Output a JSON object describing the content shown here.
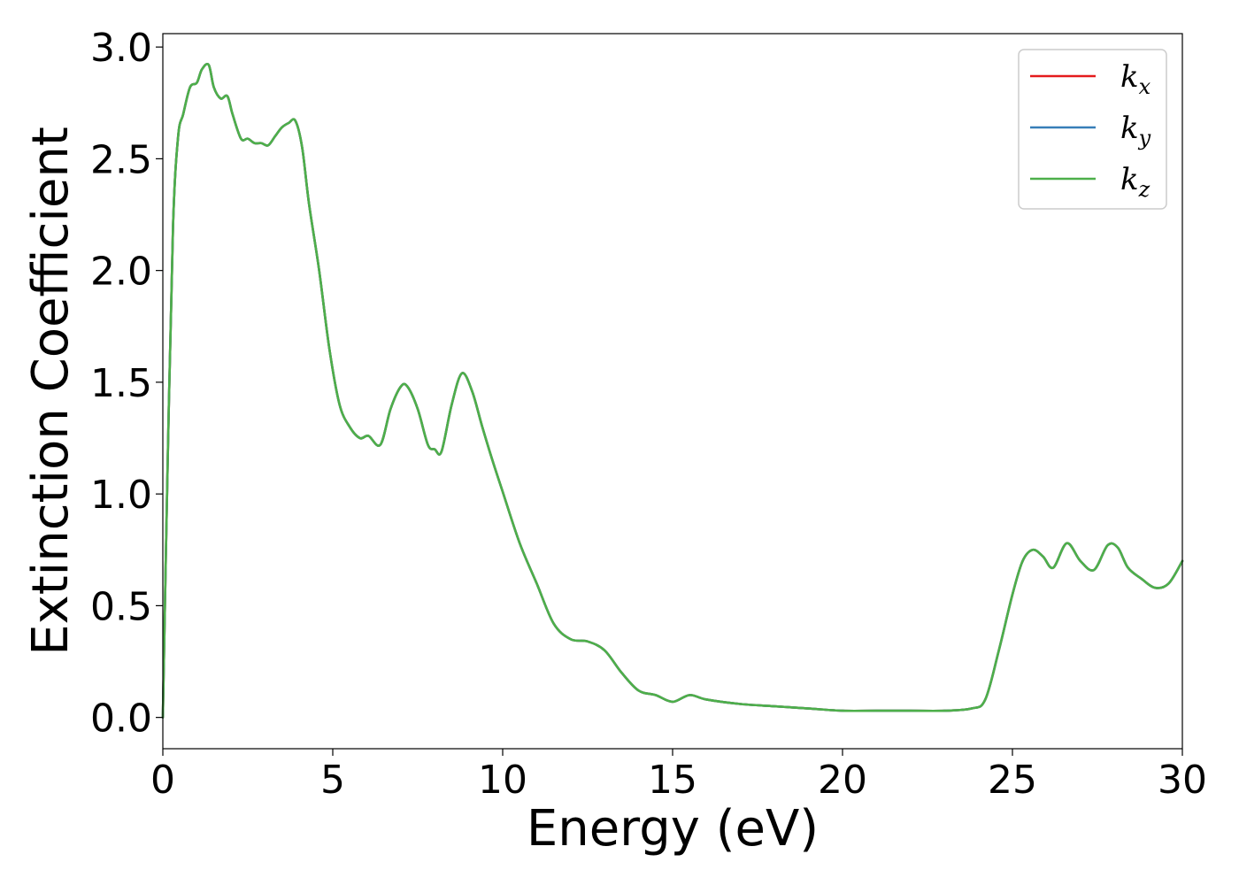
{
  "chart_data": {
    "type": "line",
    "title": "",
    "xlabel": "Energy (eV)",
    "ylabel": "Extinction Coefficient",
    "xlim": [
      0,
      30
    ],
    "ylim": [
      -0.14,
      3.06
    ],
    "xticks": [
      0,
      5,
      10,
      15,
      20,
      25,
      30
    ],
    "yticks": [
      0.0,
      0.5,
      1.0,
      1.5,
      2.0,
      2.5,
      3.0
    ],
    "xtick_labels": [
      "0",
      "5",
      "10",
      "15",
      "20",
      "25",
      "30"
    ],
    "ytick_labels": [
      "0.0",
      "0.5",
      "1.0",
      "1.5",
      "2.0",
      "2.5",
      "3.0"
    ],
    "grid": false,
    "legend_position": "top-right",
    "x": [
      0,
      0.15,
      0.3,
      0.45,
      0.6,
      0.8,
      1.0,
      1.15,
      1.35,
      1.5,
      1.7,
      1.9,
      2.05,
      2.3,
      2.5,
      2.7,
      2.9,
      3.1,
      3.3,
      3.5,
      3.7,
      3.9,
      4.1,
      4.3,
      4.6,
      4.9,
      5.2,
      5.5,
      5.8,
      6.05,
      6.4,
      6.7,
      7.0,
      7.2,
      7.5,
      7.8,
      8.0,
      8.2,
      8.5,
      8.8,
      9.1,
      9.4,
      9.7,
      10.0,
      10.5,
      11.0,
      11.5,
      12.0,
      12.5,
      13.0,
      13.5,
      14.0,
      14.5,
      15.0,
      15.5,
      16.0,
      17.0,
      18.0,
      19.0,
      20.0,
      21.0,
      22.0,
      23.0,
      23.8,
      24.2,
      24.6,
      25.0,
      25.3,
      25.6,
      25.9,
      26.2,
      26.6,
      27.0,
      27.4,
      27.8,
      28.1,
      28.4,
      28.8,
      29.2,
      29.6,
      30.0
    ],
    "series": [
      {
        "name": "k_x",
        "color": "#e41a1c",
        "y": [
          0.0,
          1.2,
          2.2,
          2.6,
          2.7,
          2.82,
          2.84,
          2.9,
          2.92,
          2.82,
          2.77,
          2.78,
          2.7,
          2.59,
          2.59,
          2.57,
          2.57,
          2.56,
          2.6,
          2.64,
          2.66,
          2.67,
          2.55,
          2.3,
          2.0,
          1.65,
          1.4,
          1.3,
          1.25,
          1.26,
          1.22,
          1.38,
          1.48,
          1.48,
          1.38,
          1.22,
          1.2,
          1.19,
          1.4,
          1.54,
          1.46,
          1.3,
          1.15,
          1.01,
          0.78,
          0.6,
          0.42,
          0.35,
          0.34,
          0.3,
          0.2,
          0.12,
          0.1,
          0.07,
          0.1,
          0.08,
          0.06,
          0.05,
          0.04,
          0.03,
          0.03,
          0.03,
          0.03,
          0.04,
          0.08,
          0.3,
          0.55,
          0.7,
          0.75,
          0.72,
          0.67,
          0.78,
          0.7,
          0.66,
          0.77,
          0.76,
          0.67,
          0.62,
          0.58,
          0.6,
          0.7
        ]
      },
      {
        "name": "k_y",
        "color": "#377eb8",
        "y": [
          0.0,
          1.2,
          2.2,
          2.6,
          2.7,
          2.82,
          2.84,
          2.9,
          2.92,
          2.82,
          2.77,
          2.78,
          2.7,
          2.59,
          2.59,
          2.57,
          2.57,
          2.56,
          2.6,
          2.64,
          2.66,
          2.67,
          2.55,
          2.3,
          2.0,
          1.65,
          1.4,
          1.3,
          1.25,
          1.26,
          1.22,
          1.38,
          1.48,
          1.48,
          1.38,
          1.22,
          1.2,
          1.19,
          1.4,
          1.54,
          1.46,
          1.3,
          1.15,
          1.01,
          0.78,
          0.6,
          0.42,
          0.35,
          0.34,
          0.3,
          0.2,
          0.12,
          0.1,
          0.07,
          0.1,
          0.08,
          0.06,
          0.05,
          0.04,
          0.03,
          0.03,
          0.03,
          0.03,
          0.04,
          0.08,
          0.3,
          0.55,
          0.7,
          0.75,
          0.72,
          0.67,
          0.78,
          0.7,
          0.66,
          0.77,
          0.76,
          0.67,
          0.62,
          0.58,
          0.6,
          0.7
        ]
      },
      {
        "name": "k_z",
        "color": "#4daf4a",
        "y": [
          0.0,
          1.2,
          2.2,
          2.6,
          2.7,
          2.82,
          2.84,
          2.9,
          2.92,
          2.82,
          2.77,
          2.78,
          2.7,
          2.59,
          2.59,
          2.57,
          2.57,
          2.56,
          2.6,
          2.64,
          2.66,
          2.67,
          2.55,
          2.3,
          2.0,
          1.65,
          1.4,
          1.3,
          1.25,
          1.26,
          1.22,
          1.38,
          1.48,
          1.48,
          1.38,
          1.22,
          1.2,
          1.19,
          1.4,
          1.54,
          1.46,
          1.3,
          1.15,
          1.01,
          0.78,
          0.6,
          0.42,
          0.35,
          0.34,
          0.3,
          0.2,
          0.12,
          0.1,
          0.07,
          0.1,
          0.08,
          0.06,
          0.05,
          0.04,
          0.03,
          0.03,
          0.03,
          0.03,
          0.04,
          0.08,
          0.3,
          0.55,
          0.7,
          0.75,
          0.72,
          0.67,
          0.78,
          0.7,
          0.66,
          0.77,
          0.76,
          0.67,
          0.62,
          0.58,
          0.6,
          0.7
        ]
      }
    ],
    "legend": [
      {
        "base": "k",
        "sub": "x",
        "color": "#e41a1c"
      },
      {
        "base": "k",
        "sub": "y",
        "color": "#377eb8"
      },
      {
        "base": "k",
        "sub": "z",
        "color": "#4daf4a"
      }
    ]
  }
}
